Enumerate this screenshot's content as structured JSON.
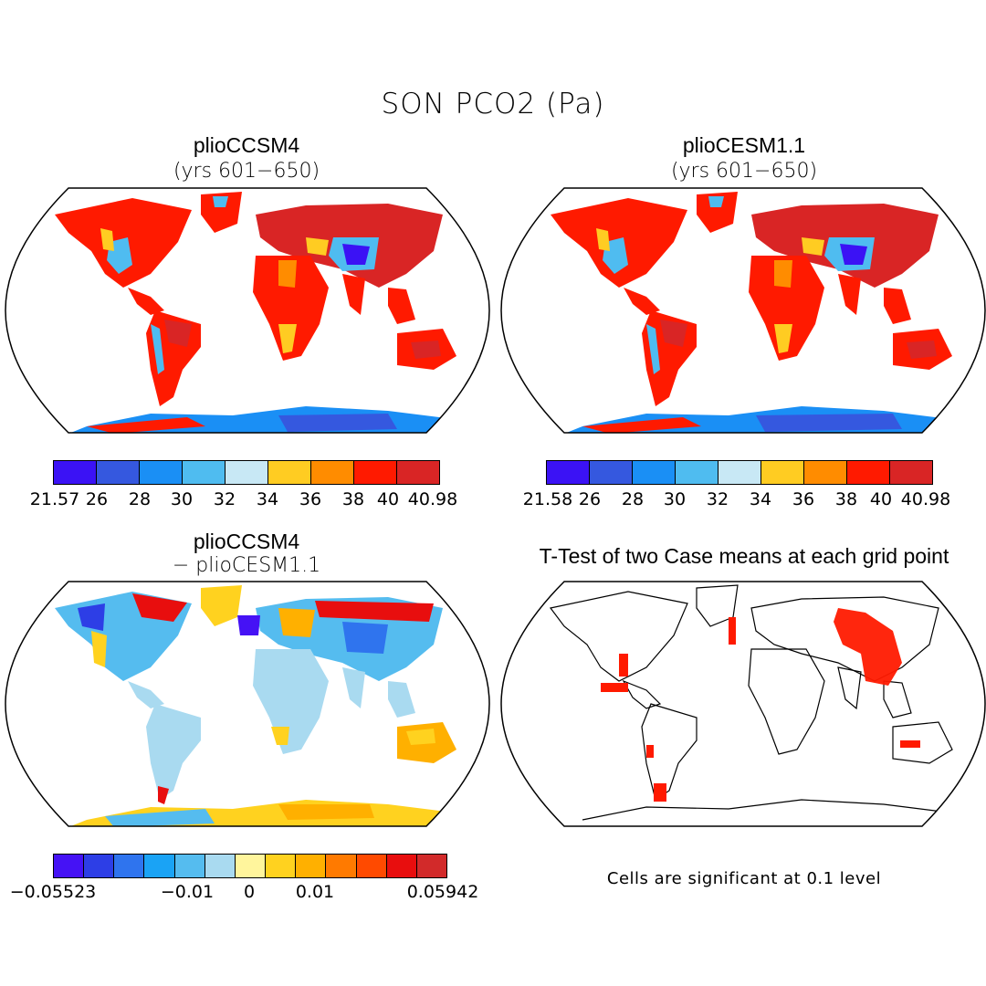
{
  "figure": {
    "title": "SON PCO2 (Pa)"
  },
  "panels": [
    {
      "id": "top-left",
      "title": "plioCCSM4",
      "subtitle": "(yrs 601−650)",
      "colorbar": {
        "colors": [
          "#3b12f5",
          "#3558df",
          "#1a8ff5",
          "#4fbcf0",
          "#c8e8f5",
          "#ffcc22",
          "#ff8c00",
          "#ff1a00",
          "#d92525"
        ],
        "labels": [
          "21.57",
          "26",
          "28",
          "30",
          "32",
          "34",
          "36",
          "38",
          "40",
          "40.98"
        ]
      }
    },
    {
      "id": "top-right",
      "title": "plioCESM1.1",
      "subtitle": "(yrs 601−650)",
      "colorbar": {
        "colors": [
          "#3b12f5",
          "#3558df",
          "#1a8ff5",
          "#4fbcf0",
          "#c8e8f5",
          "#ffcc22",
          "#ff8c00",
          "#ff1a00",
          "#d92525"
        ],
        "labels": [
          "21.58",
          "26",
          "28",
          "30",
          "32",
          "34",
          "36",
          "38",
          "40",
          "40.98"
        ]
      }
    },
    {
      "id": "bottom-left",
      "title": "plioCCSM4",
      "subtitle": "− plioCESM1.1",
      "colorbar": {
        "colors": [
          "#4512f5",
          "#2d3ee6",
          "#2f74ee",
          "#1aa3f5",
          "#55bcef",
          "#a9daf0",
          "#fff59c",
          "#ffd21f",
          "#ffb000",
          "#ff7a00",
          "#ff4a00",
          "#e80e0e",
          "#d22a2a"
        ],
        "labels": [
          "−0.05523",
          "−0.01",
          "0",
          "0.01",
          "0.05942"
        ]
      }
    },
    {
      "id": "bottom-right",
      "title": "T-Test of two Case means at each grid point",
      "note": "Cells are significant at 0.1 level"
    }
  ]
}
